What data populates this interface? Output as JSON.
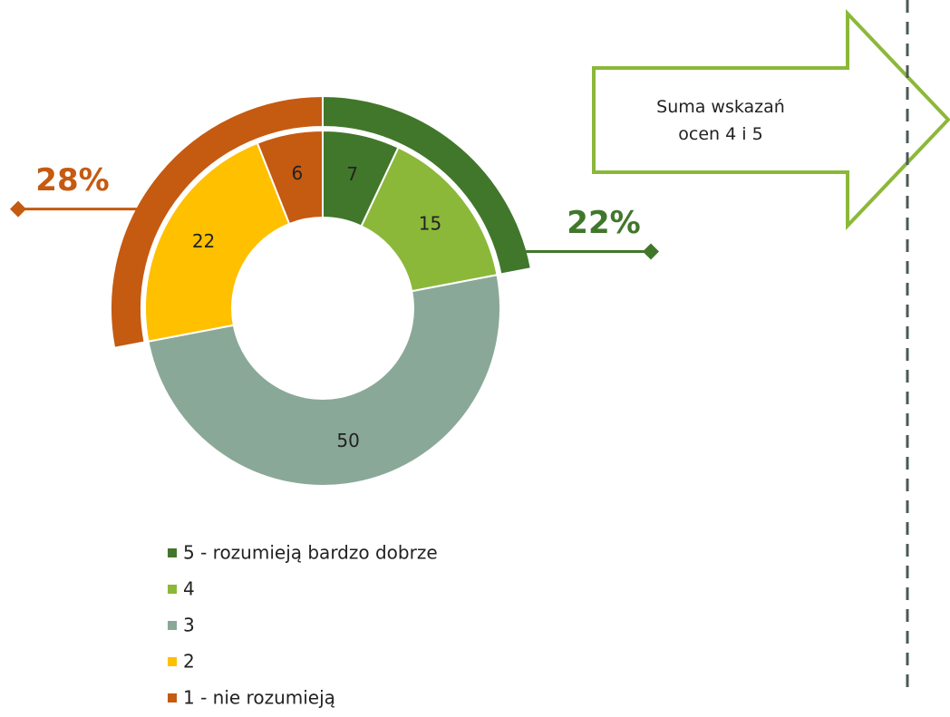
{
  "chart_data": {
    "type": "donut",
    "categories": [
      "5 - rozumieją bardzo dobrze",
      "4",
      "3",
      "2",
      "1 - nie rozumieją"
    ],
    "values": [
      7,
      15,
      50,
      22,
      6
    ],
    "colors": [
      "#41772b",
      "#8cb83a",
      "#8aa898",
      "#ffc000",
      "#c55a11"
    ],
    "outer_rings": {
      "values": [
        22,
        28
      ],
      "value_labels": [
        "22%",
        "28%"
      ],
      "colors": [
        "#41772b",
        "#c55a11"
      ]
    },
    "annotation": "Suma wskazań ocen 4 i 5",
    "legend": "bottom"
  }
}
